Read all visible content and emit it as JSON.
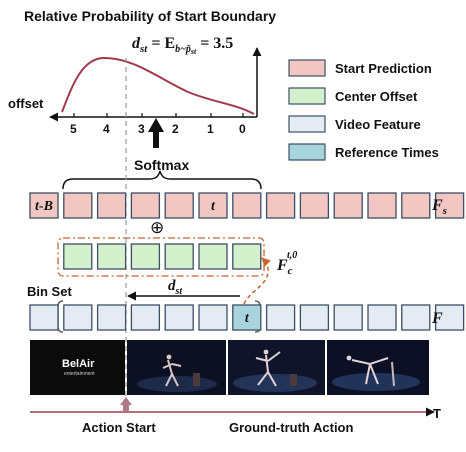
{
  "title": "Relative Probability of Start Boundary",
  "expectation": {
    "lhs": "d",
    "lhs_sub": "st",
    "mid": " = E",
    "sub": "b~p̃",
    "sub2": "st",
    "rhs": " = 3.5"
  },
  "offset_label": "offset",
  "ticks": [
    "5",
    "4",
    "3",
    "2",
    "1",
    "0"
  ],
  "softmax_label": "Softmax",
  "row_fs": {
    "cells": [
      "t-B",
      "",
      "",
      "",
      "",
      "t",
      "",
      "",
      "",
      "",
      "",
      "",
      ""
    ],
    "label": "F",
    "label_sub": "s"
  },
  "row_fc": {
    "label": "F",
    "label_sub": "c",
    "label_sup": "t,0"
  },
  "row_f": {
    "cells": [
      "",
      "",
      "",
      "",
      "",
      "",
      "t",
      "",
      "",
      "",
      "",
      "",
      ""
    ],
    "label": "F"
  },
  "plus_symbol": "⊕",
  "bin_set_label": "Bin Set",
  "dst_label": {
    "main": "d",
    "sub": "st"
  },
  "frames": [
    {
      "logo_top": "BelAir",
      "logo_bottom": "entertainment"
    }
  ],
  "axis": {
    "action_start": "Action Start",
    "ground_truth": "Ground-truth Action",
    "t_label": "T"
  },
  "legend": [
    {
      "label": "Start Prediction",
      "color": "#f2c6c2"
    },
    {
      "label": "Center Offset",
      "color": "#d5f0cc"
    },
    {
      "label": "Video Feature",
      "color": "#e4ebf3"
    },
    {
      "label": "Reference Times",
      "color": "#a9d3dd"
    }
  ],
  "colors": {
    "curve": "#a23a4a",
    "cell_border": "#3b4f66",
    "fc_border": "#c8642a",
    "start_arrow": "#b07a84",
    "dashed": "#999999"
  }
}
